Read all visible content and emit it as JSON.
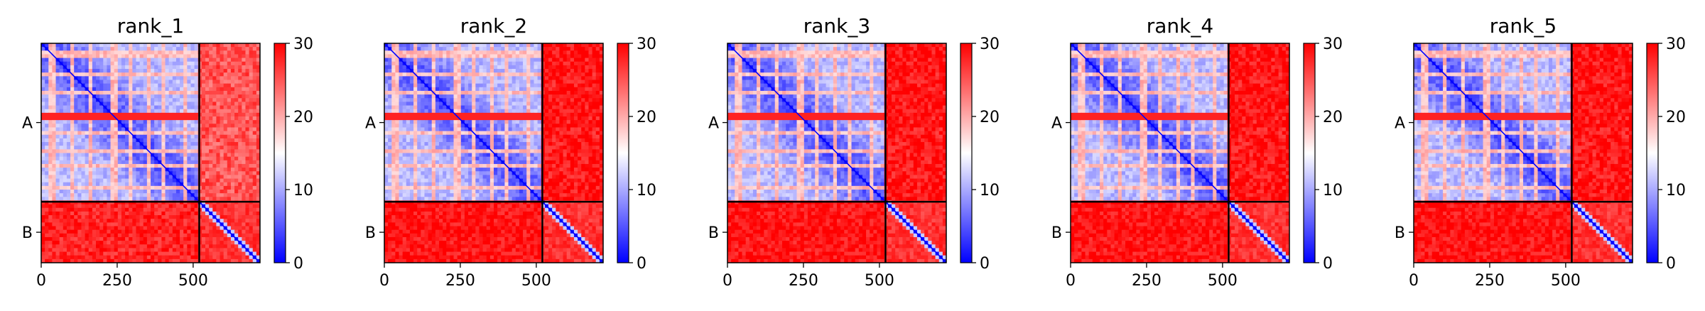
{
  "figure": {
    "type": "pae-heatmap-panels"
  },
  "colors": {
    "low": "#0000ff",
    "mid": "#ffffff",
    "high": "#ff0000",
    "axis": "#000000"
  },
  "chart_data": [
    {
      "type": "heatmap",
      "title": "rank_1",
      "xticks": [
        0,
        250,
        500
      ],
      "yticklabels": [
        "A",
        "B"
      ],
      "colorbar": {
        "ticks": [
          0,
          10,
          20,
          30
        ],
        "range": [
          0,
          30
        ]
      },
      "chains": [
        {
          "name": "A",
          "length": 520
        },
        {
          "name": "B",
          "length": 200
        }
      ],
      "xlim": [
        0,
        720
      ],
      "pae_means": {
        "A_A": 12,
        "A_B": 25,
        "B_A": 28,
        "B_B": 27
      }
    },
    {
      "type": "heatmap",
      "title": "rank_2",
      "xticks": [
        0,
        250,
        500
      ],
      "yticklabels": [
        "A",
        "B"
      ],
      "colorbar": {
        "ticks": [
          0,
          10,
          20,
          30
        ],
        "range": [
          0,
          30
        ]
      },
      "chains": [
        {
          "name": "A",
          "length": 520
        },
        {
          "name": "B",
          "length": 200
        }
      ],
      "xlim": [
        0,
        720
      ],
      "pae_means": {
        "A_A": 12,
        "A_B": 29,
        "B_A": 29,
        "B_B": 27
      }
    },
    {
      "type": "heatmap",
      "title": "rank_3",
      "xticks": [
        0,
        250,
        500
      ],
      "yticklabels": [
        "A",
        "B"
      ],
      "colorbar": {
        "ticks": [
          0,
          10,
          20,
          30
        ],
        "range": [
          0,
          30
        ]
      },
      "chains": [
        {
          "name": "A",
          "length": 520
        },
        {
          "name": "B",
          "length": 200
        }
      ],
      "xlim": [
        0,
        720
      ],
      "pae_means": {
        "A_A": 12,
        "A_B": 29,
        "B_A": 29,
        "B_B": 27
      }
    },
    {
      "type": "heatmap",
      "title": "rank_4",
      "xticks": [
        0,
        250,
        500
      ],
      "yticklabels": [
        "A",
        "B"
      ],
      "colorbar": {
        "ticks": [
          0,
          10,
          20,
          30
        ],
        "range": [
          0,
          30
        ]
      },
      "chains": [
        {
          "name": "A",
          "length": 520
        },
        {
          "name": "B",
          "length": 200
        }
      ],
      "xlim": [
        0,
        720
      ],
      "pae_means": {
        "A_A": 12,
        "A_B": 29,
        "B_A": 29,
        "B_B": 27
      }
    },
    {
      "type": "heatmap",
      "title": "rank_5",
      "xticks": [
        0,
        250,
        500
      ],
      "yticklabels": [
        "A",
        "B"
      ],
      "colorbar": {
        "ticks": [
          0,
          10,
          20,
          30
        ],
        "range": [
          0,
          30
        ]
      },
      "chains": [
        {
          "name": "A",
          "length": 520
        },
        {
          "name": "B",
          "length": 200
        }
      ],
      "xlim": [
        0,
        720
      ],
      "pae_means": {
        "A_A": 12,
        "A_B": 29,
        "B_A": 29,
        "B_B": 27
      }
    }
  ]
}
